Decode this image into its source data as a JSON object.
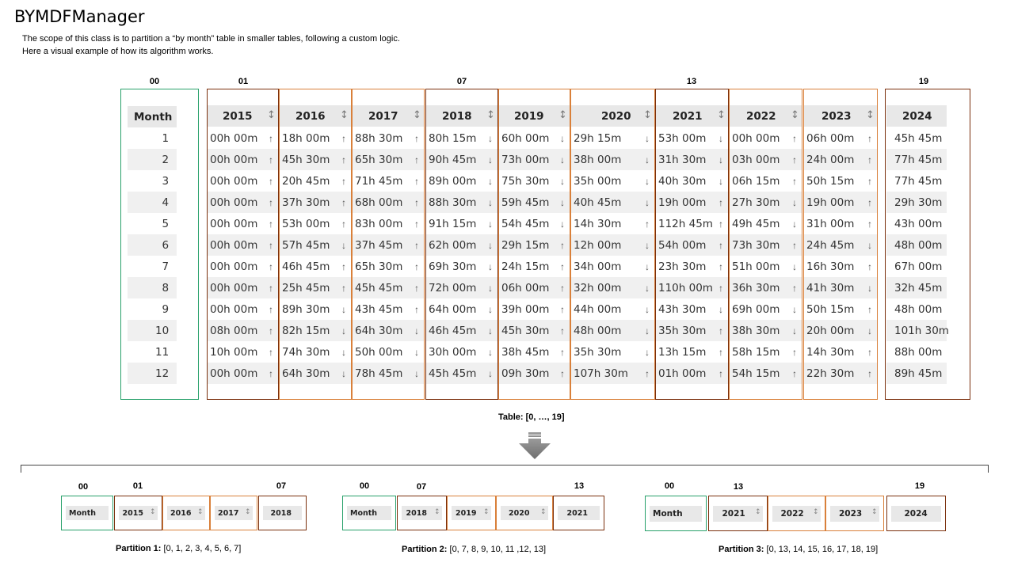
{
  "title": "BYMDFManager",
  "description": {
    "line1": "The  scope of this class is to partition a “by month”  table in smaller tables, following a custom logic.",
    "line2": "Here  a visual example of how  its algorithm works."
  },
  "indices": {
    "i00": "00",
    "i01": "01",
    "i07": "07",
    "i13": "13",
    "i19": "19"
  },
  "month_header": "Month",
  "months": [
    "1",
    "2",
    "3",
    "4",
    "5",
    "6",
    "7",
    "8",
    "9",
    "10",
    "11",
    "12"
  ],
  "years": [
    {
      "year": "2015",
      "values": [
        "00h 00m",
        "00h 00m",
        "00h 00m",
        "00h 00m",
        "00h 00m",
        "00h 00m",
        "00h 00m",
        "00h 00m",
        "00h 00m",
        "08h 00m",
        "10h 00m",
        "00h 00m"
      ],
      "arrows": [
        "↑",
        "↑",
        "↑",
        "↑",
        "↑",
        "↑",
        "↑",
        "↑",
        "↑",
        "↑",
        "↑",
        "↑"
      ]
    },
    {
      "year": "2016",
      "values": [
        "18h 00m",
        "45h 30m",
        "20h 45m",
        "37h 30m",
        "53h 00m",
        "57h 45m",
        "46h 45m",
        "25h 45m",
        "89h 30m",
        "82h 15m",
        "74h 30m",
        "64h 30m"
      ],
      "arrows": [
        "↑",
        "↑",
        "↑",
        "↑",
        "↑",
        "↓",
        "↑",
        "↑",
        "↓",
        "↓",
        "↓",
        "↓"
      ]
    },
    {
      "year": "2017",
      "values": [
        "88h 30m",
        "65h 30m",
        "71h 45m",
        "68h 00m",
        "83h 00m",
        "37h 45m",
        "65h 30m",
        "45h 45m",
        "43h 45m",
        "64h 30m",
        "50h 00m",
        "78h 45m"
      ],
      "arrows": [
        "↑",
        "↑",
        "↑",
        "↑",
        "↑",
        "↑",
        "↑",
        "↑",
        "↑",
        "↓",
        "↓",
        "↓"
      ]
    },
    {
      "year": "2018",
      "values": [
        "80h 15m",
        "90h 45m",
        "89h 00m",
        "88h 30m",
        "91h 15m",
        "62h 00m",
        "69h 30m",
        "72h 00m",
        "64h 00m",
        "46h 45m",
        "30h 00m",
        "45h 45m"
      ],
      "arrows": [
        "↓",
        "↓",
        "↓",
        "↓",
        "↓",
        "↓",
        "↓",
        "↓",
        "↓",
        "↓",
        "↓",
        "↓"
      ]
    },
    {
      "year": "2019",
      "values": [
        "60h 00m",
        "73h 00m",
        "75h 30m",
        "59h 45m",
        "54h 45m",
        "29h 15m",
        "24h 15m",
        "06h 00m",
        "39h 00m",
        "45h 30m",
        "38h 45m",
        "09h 30m"
      ],
      "arrows": [
        "↓",
        "↓",
        "↓",
        "↓",
        "↓",
        "↑",
        "↑",
        "↑",
        "↑",
        "↑",
        "↑",
        "↑"
      ]
    },
    {
      "year": "2020",
      "values": [
        "29h 15m",
        "38h 00m",
        "35h 00m",
        "40h 45m",
        "14h 30m",
        "12h 00m",
        "34h 00m",
        "32h 00m",
        "44h 00m",
        "48h 00m",
        "35h 30m",
        "107h 30m"
      ],
      "arrows": [
        "↓",
        "↓",
        "↓",
        "↓",
        "↑",
        "↓",
        "↓",
        "↓",
        "↓",
        "↓",
        "↓",
        "↑"
      ]
    },
    {
      "year": "2021",
      "values": [
        "53h 00m",
        "31h 30m",
        "40h 30m",
        "19h 00m",
        "112h 45m",
        "54h 00m",
        "23h 30m",
        "110h 00m",
        "43h 30m",
        "35h 30m",
        "13h 15m",
        "01h 00m"
      ],
      "arrows": [
        "↓",
        "↓",
        "↓",
        "↑",
        "↑",
        "↑",
        "↑",
        "↑",
        "↓",
        "↑",
        "↑",
        "↑"
      ]
    },
    {
      "year": "2022",
      "values": [
        "00h 00m",
        "03h 00m",
        "06h 15m",
        "27h 30m",
        "49h 45m",
        "73h 30m",
        "51h 00m",
        "36h 30m",
        "69h 00m",
        "38h 30m",
        "58h 15m",
        "54h 15m"
      ],
      "arrows": [
        "↑",
        "↑",
        "↑",
        "↓",
        "↓",
        "↑",
        "↓",
        "↑",
        "↓",
        "↓",
        "↑",
        "↑"
      ]
    },
    {
      "year": "2023",
      "values": [
        "06h 00m",
        "24h 00m",
        "50h 15m",
        "19h 00m",
        "31h 00m",
        "24h 45m",
        "16h 30m",
        "41h 30m",
        "50h 15m",
        "20h 00m",
        "14h 30m",
        "22h 30m"
      ],
      "arrows": [
        "↑",
        "↑",
        "↑",
        "↑",
        "↑",
        "↓",
        "↑",
        "↓",
        "↑",
        "↓",
        "↑",
        "↑"
      ]
    },
    {
      "year": "2024",
      "values": [
        "45h 45m",
        "77h 45m",
        "77h 45m",
        "29h 30m",
        "43h 00m",
        "48h 00m",
        "67h 00m",
        "32h 45m",
        "48h 00m",
        "101h 30m",
        "88h 00m",
        "89h 45m"
      ],
      "arrows": []
    }
  ],
  "sort_icon": "↕",
  "table_caption": {
    "label": "Table:",
    "range": " [0, …,  19]"
  },
  "partitions": [
    {
      "label": "Partition 1:",
      "range": " [0, 1, 2, 3, 4, 5, 6, 7]"
    },
    {
      "label": "Partition 2:",
      "range": " [0, 7, 8, 9, 10, 11 ,12, 13]"
    },
    {
      "label": "Partition 3:",
      "range": " [0, 13, 14, 15, 16, 17, 18, 19]"
    }
  ],
  "colors": {
    "month_border": "#28a06a",
    "dark_border": "#7a2f0c",
    "light_border": "#d9803a",
    "header_bg": "#e8e8e8"
  }
}
